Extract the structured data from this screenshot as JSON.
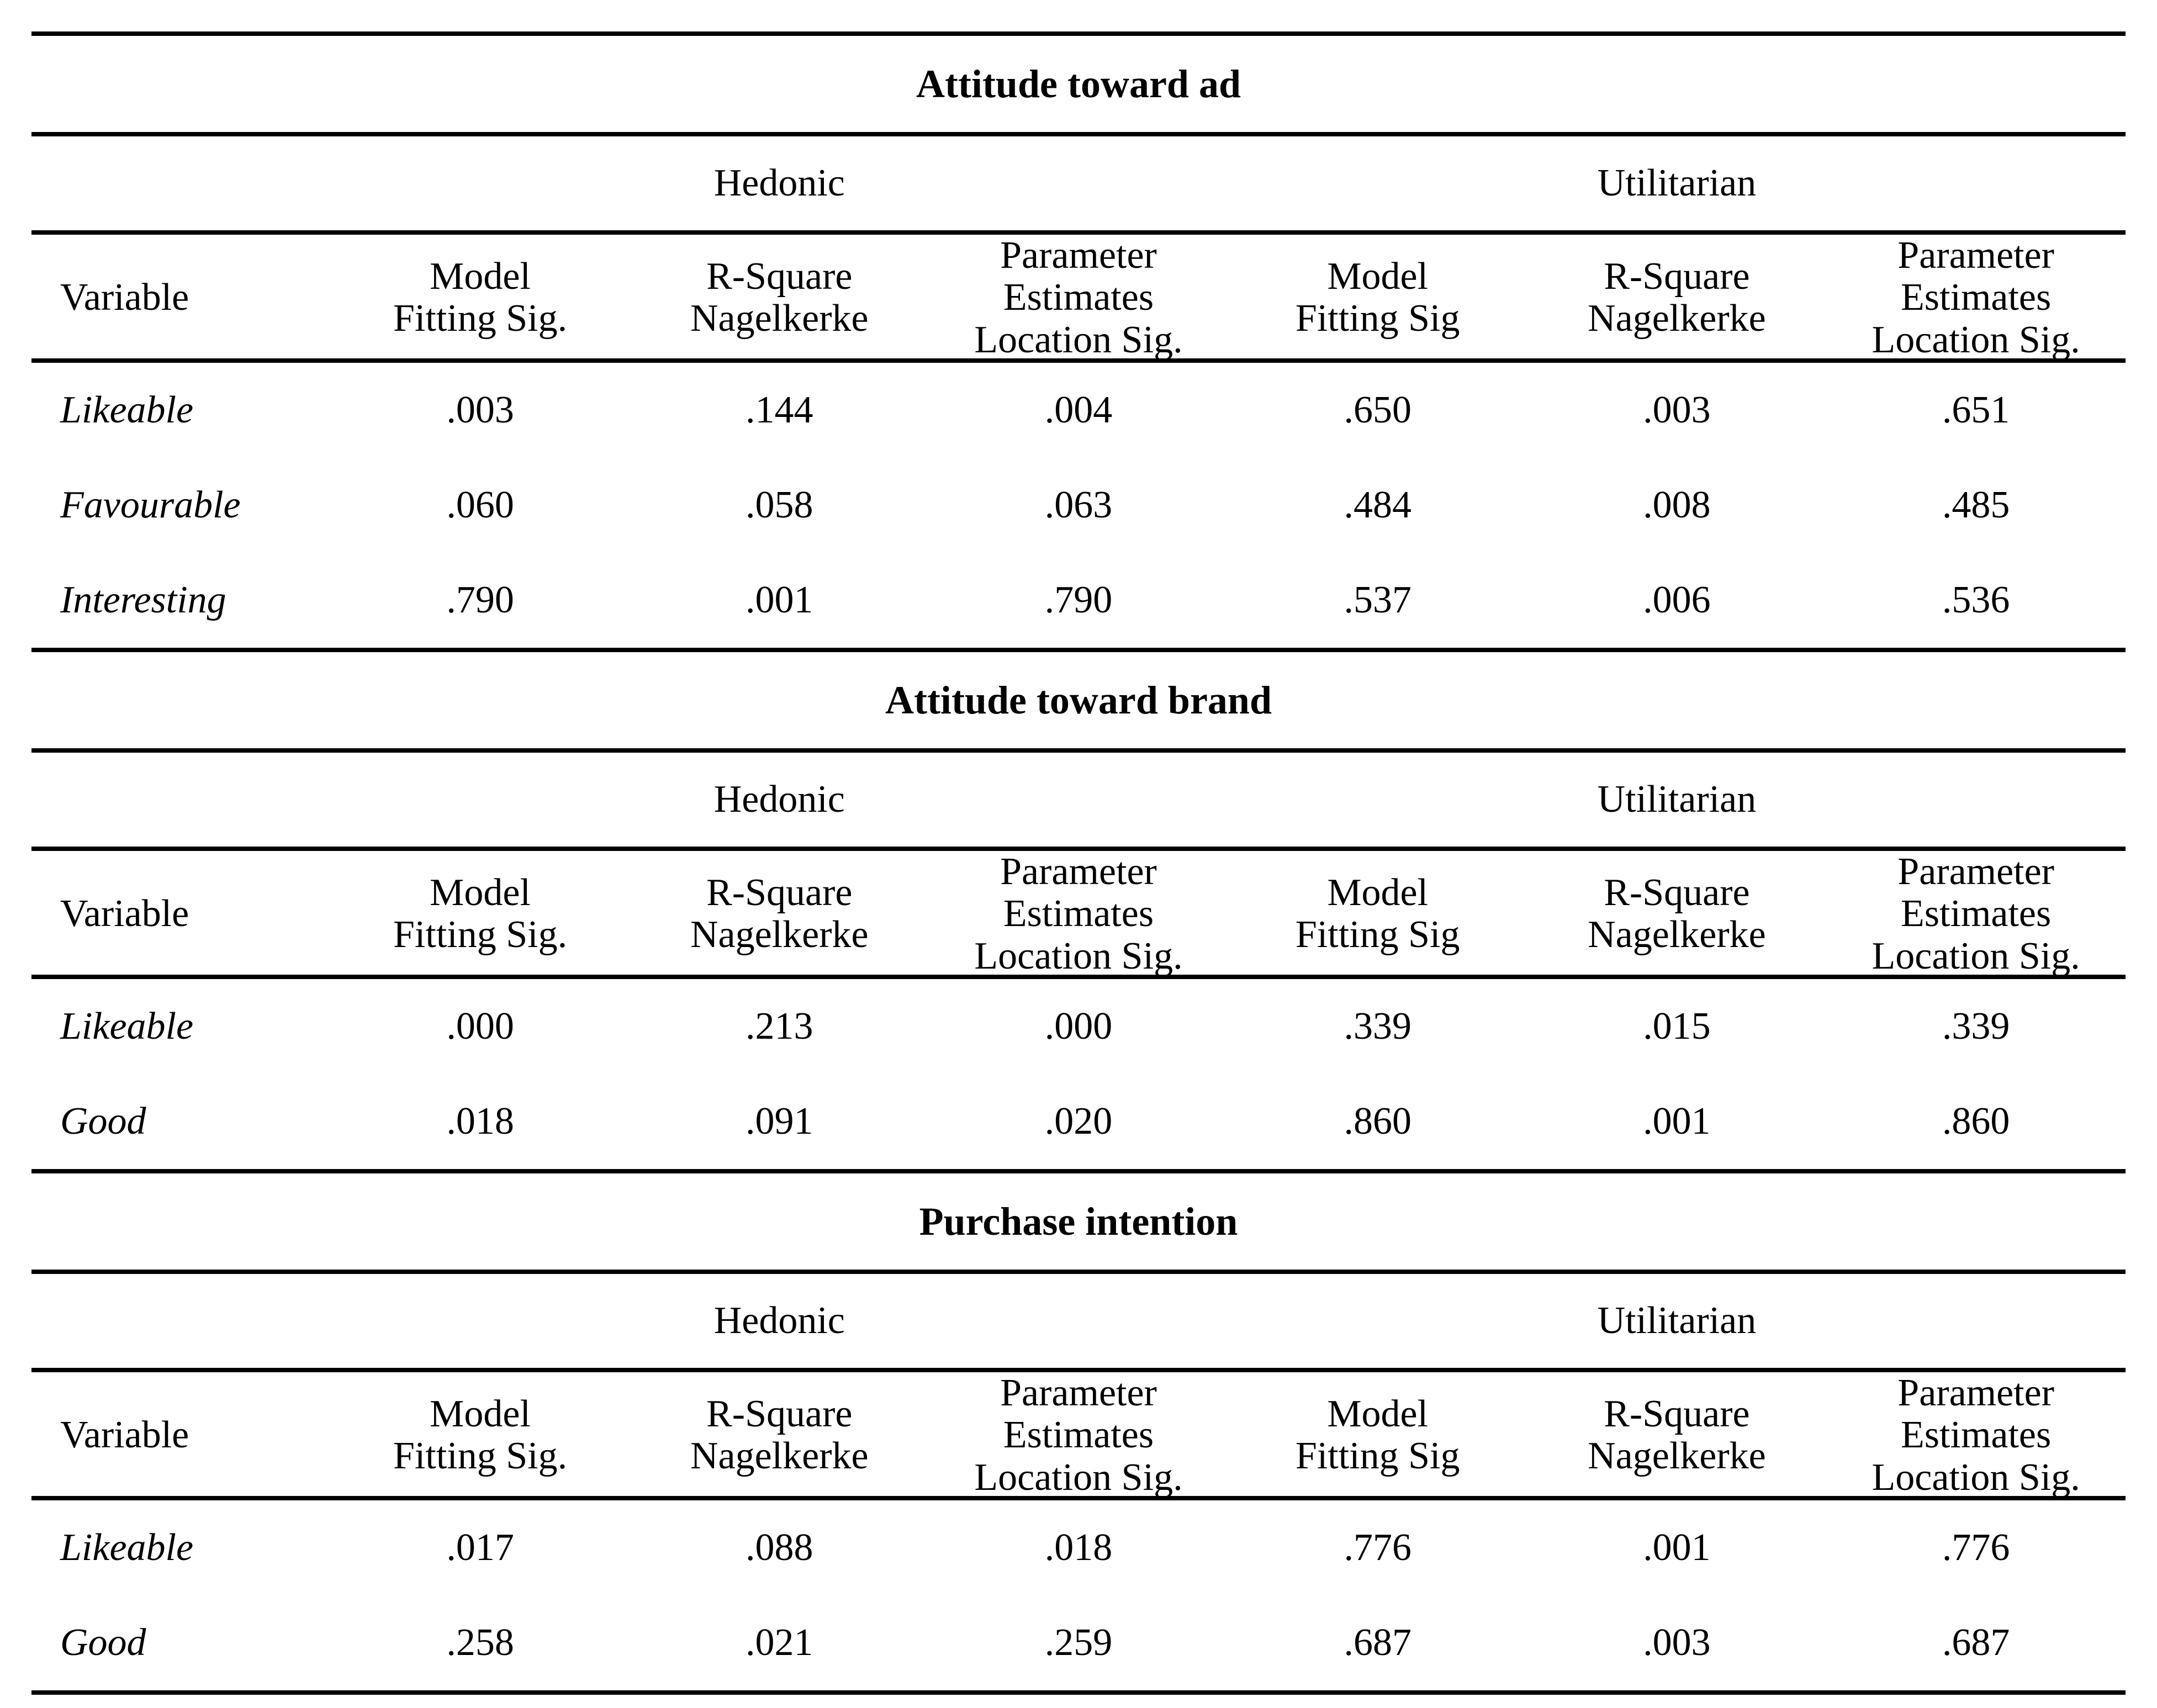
{
  "sections": [
    {
      "title": "Attitude toward ad",
      "hedonic_label": "Hedonic",
      "utilitarian_label": "Utilitarian",
      "variable_header": "Variable",
      "col_headers": [
        "Model\nFitting Sig.",
        "R-Square\nNagelkerke",
        "Parameter\nEstimates\nLocation Sig.",
        "Model\nFitting Sig",
        "R-Square\nNagelkerke",
        "Parameter\nEstimates\nLocation Sig."
      ],
      "rows": [
        {
          "variable": "Likeable",
          "values": [
            ".003",
            ".144",
            ".004",
            ".650",
            ".003",
            ".651"
          ]
        },
        {
          "variable": "Favourable",
          "values": [
            ".060",
            ".058",
            ".063",
            ".484",
            ".008",
            ".485"
          ]
        },
        {
          "variable": "Interesting",
          "values": [
            ".790",
            ".001",
            ".790",
            ".537",
            ".006",
            ".536"
          ]
        }
      ]
    },
    {
      "title": "Attitude toward brand",
      "hedonic_label": "Hedonic",
      "utilitarian_label": "Utilitarian",
      "variable_header": "Variable",
      "col_headers": [
        "Model\nFitting Sig.",
        "R-Square\nNagelkerke",
        "Parameter\nEstimates\nLocation Sig.",
        "Model\nFitting Sig",
        "R-Square\nNagelkerke",
        "Parameter\nEstimates\nLocation Sig."
      ],
      "rows": [
        {
          "variable": "Likeable",
          "values": [
            ".000",
            ".213",
            ".000",
            ".339",
            ".015",
            ".339"
          ]
        },
        {
          "variable": "Good",
          "values": [
            ".018",
            ".091",
            ".020",
            ".860",
            ".001",
            ".860"
          ]
        }
      ]
    },
    {
      "title": "Purchase intention",
      "hedonic_label": "Hedonic",
      "utilitarian_label": "Utilitarian",
      "variable_header": "Variable",
      "col_headers": [
        "Model\nFitting Sig.",
        "R-Square\nNagelkerke",
        "Parameter\nEstimates\nLocation Sig.",
        "Model\nFitting Sig",
        "R-Square\nNagelkerke",
        "Parameter\nEstimates\nLocation Sig."
      ],
      "rows": [
        {
          "variable": "Likeable",
          "values": [
            ".017",
            ".088",
            ".018",
            ".776",
            ".001",
            ".776"
          ]
        },
        {
          "variable": "Good",
          "values": [
            ".258",
            ".021",
            ".259",
            ".687",
            ".003",
            ".687"
          ]
        }
      ]
    }
  ]
}
